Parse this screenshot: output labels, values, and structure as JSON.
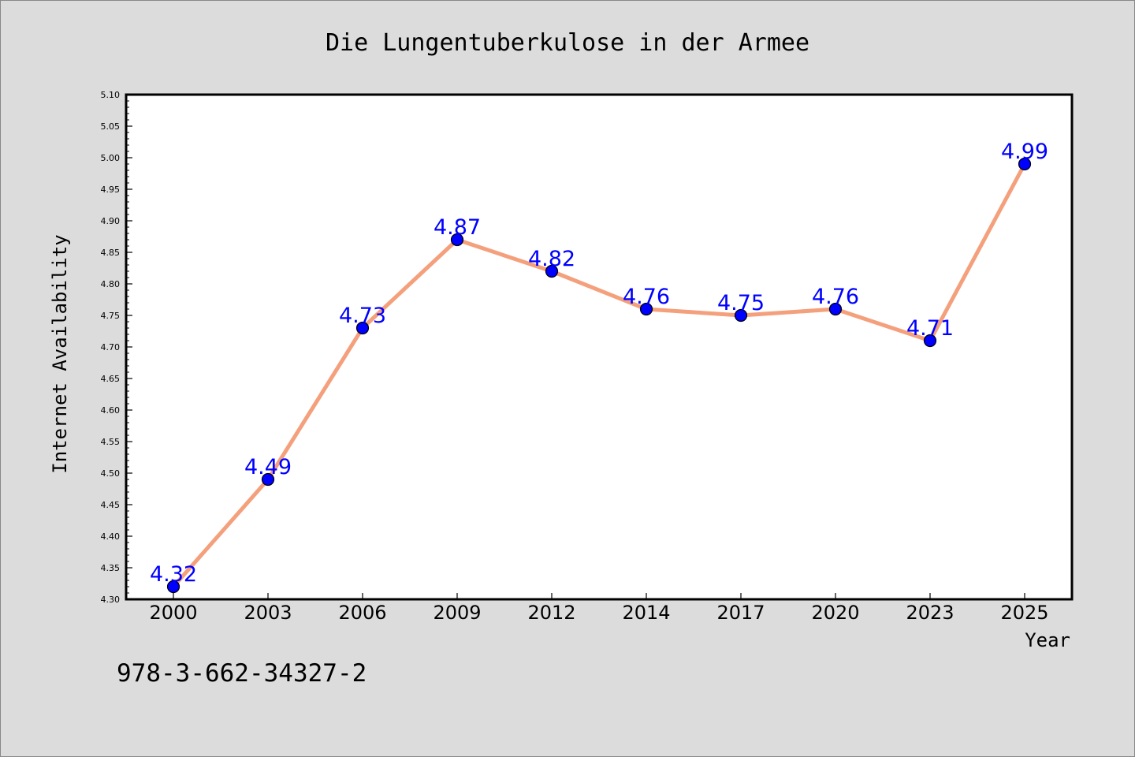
{
  "chart_data": {
    "type": "line",
    "title": "Die Lungentuberkulose in der Armee",
    "xlabel": "Year",
    "ylabel": "Internet Availability",
    "categories": [
      "2000",
      "2003",
      "2006",
      "2009",
      "2012",
      "2014",
      "2017",
      "2020",
      "2023",
      "2025"
    ],
    "series": [
      {
        "values": [
          4.32,
          4.49,
          4.73,
          4.87,
          4.82,
          4.76,
          4.75,
          4.76,
          4.71,
          4.99
        ],
        "data_labels": [
          "4.32",
          "4.49",
          "4.73",
          "4.87",
          "4.82",
          "4.76",
          "4.75",
          "4.76",
          "4.71",
          "4.99"
        ],
        "line_color": "#f4a07c",
        "marker_color": "#0000ff"
      }
    ],
    "ylim": [
      4.3,
      5.1
    ],
    "yticks": [
      "4.30",
      "4.35",
      "4.40",
      "4.45",
      "4.50",
      "4.55",
      "4.60",
      "4.65",
      "4.70",
      "4.75",
      "4.80",
      "4.85",
      "4.90",
      "4.95",
      "5.00",
      "5.05",
      "5.10"
    ],
    "grid": false,
    "legend": "none"
  },
  "footer": {
    "isbn": "978-3-662-34327-2"
  },
  "colors": {
    "figure_background": "#dcdcdc",
    "plot_background": "#ffffff",
    "line": "#f4a07c",
    "marker": "#0000ff",
    "data_label": "#0000ff"
  }
}
